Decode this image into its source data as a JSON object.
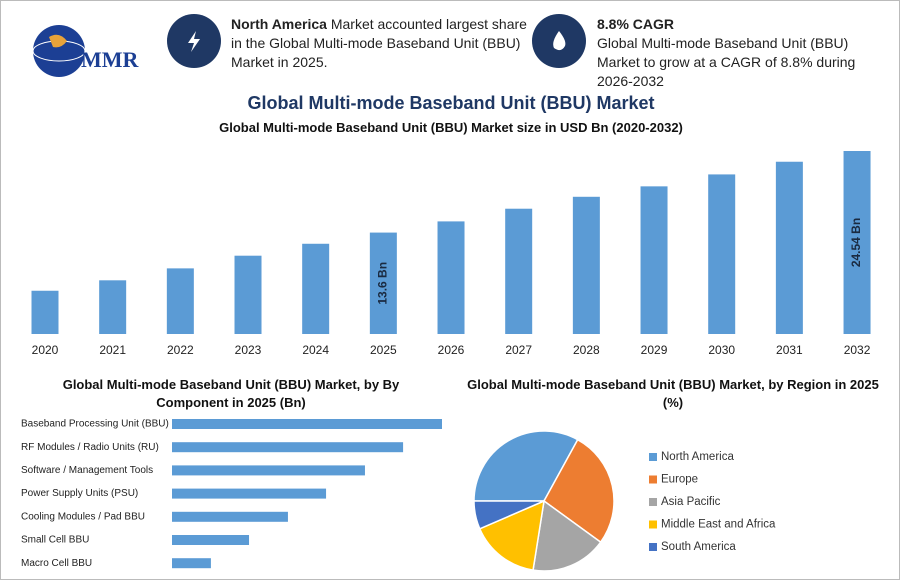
{
  "logo": "MMR",
  "highlights": [
    {
      "heading": "North America",
      "text": "Market accounted largest share in the Global Multi-mode Baseband Unit (BBU) Market in 2025."
    },
    {
      "heading": "8.8% CAGR",
      "text": "Global Multi-mode Baseband Unit (BBU) Market to grow at a CAGR of 8.8% during 2026-2032"
    }
  ],
  "title": "Global Multi-mode Baseband Unit (BBU) Market",
  "chart_data": [
    {
      "type": "bar",
      "title": "Global Multi-mode Baseband Unit (BBU) Market size in USD Bn (2020-2032)",
      "categories": [
        "2020",
        "2021",
        "2022",
        "2023",
        "2024",
        "2025",
        "2026",
        "2027",
        "2028",
        "2029",
        "2030",
        "2031",
        "2032"
      ],
      "values": [
        5.8,
        7.2,
        8.8,
        10.5,
        12.1,
        13.6,
        15.1,
        16.8,
        18.4,
        19.8,
        21.4,
        23.1,
        24.54
      ],
      "value_labels": [
        null,
        null,
        null,
        null,
        null,
        "13.6 Bn",
        null,
        null,
        null,
        null,
        null,
        null,
        "24.54 Bn"
      ],
      "color": "#5b9bd5"
    },
    {
      "type": "hbar",
      "title": "Global Multi-mode Baseband Unit (BBU) Market, by By Component in 2025 (Bn)",
      "categories": [
        "Baseband Processing Unit (BBU)",
        "RF Modules / Radio Units (RU)",
        "Software / Management Tools",
        "Power Supply Units (PSU)",
        "Cooling Modules / Pad BBU",
        "Small Cell BBU",
        "Macro Cell BBU"
      ],
      "values": [
        3.4,
        2.91,
        2.43,
        1.94,
        1.46,
        0.97,
        0.49
      ],
      "color": "#5b9bd5"
    },
    {
      "type": "pie",
      "title": "Global Multi-mode Baseband Unit (BBU) Market, by Region in 2025 (%)",
      "categories": [
        "North America",
        "Europe",
        "Asia Pacific",
        "Middle East and Africa",
        "South America"
      ],
      "values": [
        33,
        27,
        17.5,
        16,
        6.5
      ],
      "colors": [
        "#5b9bd5",
        "#ed7d31",
        "#a5a5a5",
        "#ffc000",
        "#4472c4"
      ],
      "legend": "right"
    }
  ]
}
